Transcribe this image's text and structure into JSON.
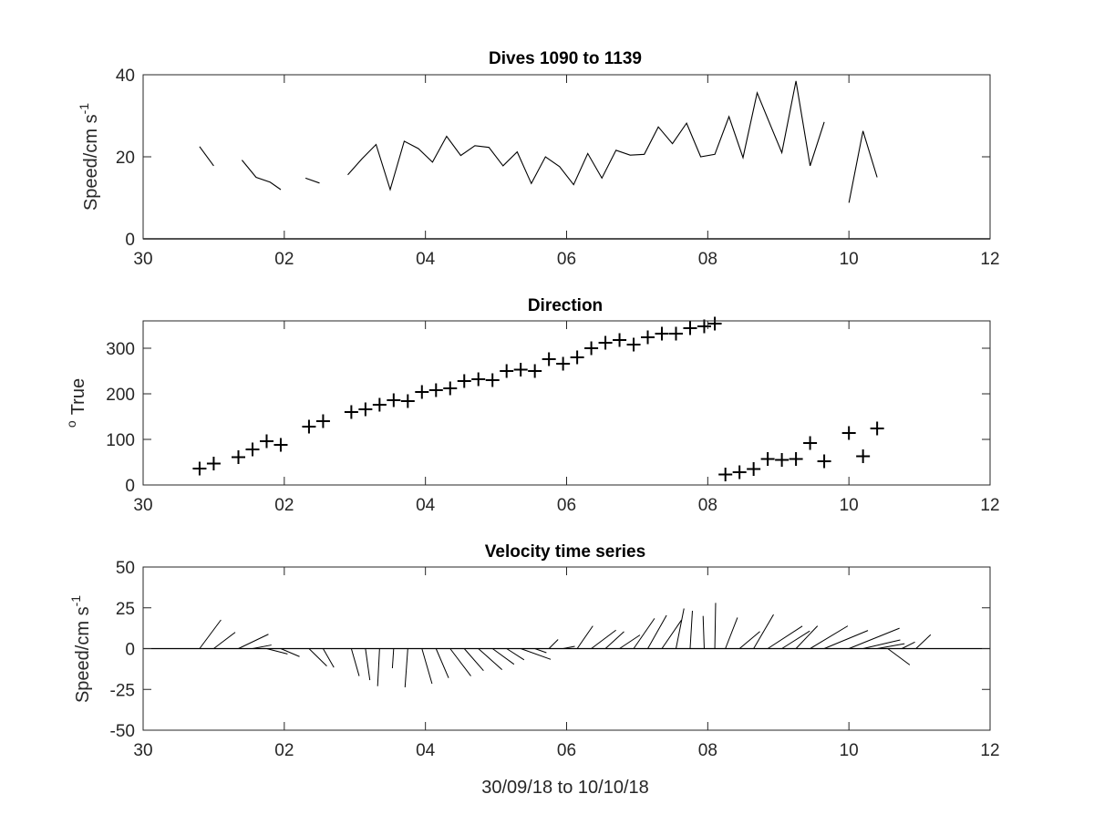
{
  "figure": {
    "x_axis_label": "30/09/18 to 10/10/18",
    "line_color": "#000000",
    "axis_color": "#262626",
    "background": "#ffffff"
  },
  "chart_data": [
    {
      "type": "line",
      "title": "Dives 1090 to 1139",
      "ylabel": "Speed/cm s",
      "ylabel_superscript": "-1",
      "x_unit": "days after 30/09/18 00:00",
      "xlim": [
        0,
        12
      ],
      "ylim": [
        0,
        40
      ],
      "x_ticks": [
        0,
        2,
        4,
        6,
        8,
        10,
        12
      ],
      "x_tick_labels": [
        "30",
        "02",
        "04",
        "06",
        "08",
        "10",
        "12"
      ],
      "y_ticks": [
        0,
        20,
        40
      ],
      "y_tick_labels": [
        "0",
        "20",
        "40"
      ],
      "segments": [
        [
          [
            0.8,
            22.5
          ],
          [
            1.0,
            17.8
          ]
        ],
        [
          [
            1.4,
            19.2
          ],
          [
            1.6,
            15.0
          ],
          [
            1.8,
            13.8
          ],
          [
            1.95,
            12.0
          ]
        ],
        [
          [
            2.3,
            14.8
          ],
          [
            2.5,
            13.6
          ]
        ],
        [
          [
            2.9,
            15.6
          ],
          [
            3.1,
            19.5
          ],
          [
            3.3,
            23.0
          ],
          [
            3.5,
            12.0
          ],
          [
            3.7,
            23.8
          ],
          [
            3.9,
            22.0
          ],
          [
            4.1,
            18.7
          ],
          [
            4.3,
            25.0
          ],
          [
            4.5,
            20.3
          ],
          [
            4.7,
            22.7
          ],
          [
            4.9,
            22.3
          ],
          [
            5.1,
            17.8
          ],
          [
            5.3,
            21.2
          ],
          [
            5.5,
            13.5
          ],
          [
            5.7,
            20.0
          ],
          [
            5.9,
            17.6
          ],
          [
            6.1,
            13.2
          ],
          [
            6.3,
            20.8
          ],
          [
            6.5,
            14.8
          ],
          [
            6.7,
            21.6
          ],
          [
            6.9,
            20.4
          ],
          [
            7.1,
            20.6
          ],
          [
            7.3,
            27.3
          ],
          [
            7.5,
            23.2
          ],
          [
            7.7,
            28.2
          ],
          [
            7.9,
            20.0
          ],
          [
            8.1,
            20.6
          ],
          [
            8.3,
            29.8
          ],
          [
            8.5,
            19.8
          ],
          [
            8.7,
            35.6
          ],
          [
            8.9,
            27.2
          ],
          [
            9.05,
            21.0
          ],
          [
            9.25,
            38.5
          ],
          [
            9.45,
            17.8
          ],
          [
            9.65,
            28.5
          ]
        ],
        [
          [
            10.0,
            8.8
          ],
          [
            10.2,
            26.3
          ],
          [
            10.4,
            15.0
          ]
        ]
      ]
    },
    {
      "type": "scatter",
      "title": "Direction",
      "ylabel": "True",
      "ylabel_superscript": "o",
      "x_unit": "days after 30/09/18 00:00",
      "xlim": [
        0,
        12
      ],
      "ylim": [
        0,
        360
      ],
      "x_ticks": [
        0,
        2,
        4,
        6,
        8,
        10,
        12
      ],
      "x_tick_labels": [
        "30",
        "02",
        "04",
        "06",
        "08",
        "10",
        "12"
      ],
      "y_ticks": [
        0,
        100,
        200,
        300
      ],
      "y_tick_labels": [
        "0",
        "100",
        "200",
        "300"
      ],
      "marker": "+",
      "points": [
        [
          0.8,
          36
        ],
        [
          1.0,
          47
        ],
        [
          1.35,
          61
        ],
        [
          1.55,
          78
        ],
        [
          1.75,
          96
        ],
        [
          1.95,
          88
        ],
        [
          2.35,
          128
        ],
        [
          2.55,
          140
        ],
        [
          2.95,
          160
        ],
        [
          3.15,
          166
        ],
        [
          3.35,
          176
        ],
        [
          3.55,
          186
        ],
        [
          3.75,
          184
        ],
        [
          3.95,
          204
        ],
        [
          4.15,
          208
        ],
        [
          4.35,
          212
        ],
        [
          4.55,
          228
        ],
        [
          4.75,
          232
        ],
        [
          4.95,
          230
        ],
        [
          5.15,
          250
        ],
        [
          5.35,
          253
        ],
        [
          5.55,
          250
        ],
        [
          5.75,
          276
        ],
        [
          5.95,
          266
        ],
        [
          6.15,
          280
        ],
        [
          6.35,
          300
        ],
        [
          6.55,
          312
        ],
        [
          6.75,
          318
        ],
        [
          6.95,
          308
        ],
        [
          7.15,
          324
        ],
        [
          7.35,
          332
        ],
        [
          7.55,
          332
        ],
        [
          7.75,
          344
        ],
        [
          7.95,
          348
        ],
        [
          8.1,
          354
        ],
        [
          8.25,
          23
        ],
        [
          8.45,
          28
        ],
        [
          8.65,
          35
        ],
        [
          8.85,
          57
        ],
        [
          9.05,
          55
        ],
        [
          9.25,
          57
        ],
        [
          9.45,
          92
        ],
        [
          9.65,
          52
        ],
        [
          10.0,
          114
        ],
        [
          10.2,
          63
        ],
        [
          10.4,
          124
        ]
      ]
    },
    {
      "type": "quiver",
      "title": "Velocity time series",
      "ylabel": "Speed/cm s",
      "ylabel_superscript": "-1",
      "x_unit": "days after 30/09/18 00:00",
      "xlim": [
        0,
        12
      ],
      "ylim": [
        -50,
        50
      ],
      "x_ticks": [
        0,
        2,
        4,
        6,
        8,
        10,
        12
      ],
      "x_tick_labels": [
        "30",
        "02",
        "04",
        "06",
        "08",
        "10",
        "12"
      ],
      "y_ticks": [
        -50,
        -25,
        0,
        25,
        50
      ],
      "y_tick_labels": [
        "-50",
        "-25",
        "0",
        "25",
        "50"
      ],
      "vectors_ue_vn": [
        [
          0.8,
          13.1,
          17.6
        ],
        [
          1.0,
          13.2,
          10.0
        ],
        [
          1.35,
          18.4,
          8.8
        ],
        [
          1.55,
          11.6,
          2.2
        ],
        [
          1.75,
          12.8,
          -3.3
        ],
        [
          1.95,
          11.5,
          -4.9
        ],
        [
          2.35,
          10.9,
          -10.7
        ],
        [
          2.55,
          6.6,
          -11.5
        ],
        [
          2.95,
          4.8,
          -16.8
        ],
        [
          3.15,
          2.7,
          -19.3
        ],
        [
          3.35,
          -1.2,
          -23.0
        ],
        [
          3.55,
          -0.8,
          -12.0
        ],
        [
          3.75,
          -1.7,
          -23.7
        ],
        [
          3.95,
          6.2,
          -21.5
        ],
        [
          4.15,
          7.7,
          -18.0
        ],
        [
          4.35,
          12.7,
          -16.8
        ],
        [
          4.55,
          11.8,
          -13.5
        ],
        [
          4.75,
          14.5,
          -12.9
        ],
        [
          4.95,
          13.2,
          -9.6
        ],
        [
          5.15,
          10.7,
          -6.9
        ],
        [
          5.35,
          18.4,
          -6.6
        ],
        [
          5.55,
          7.1,
          -2.5
        ],
        [
          5.75,
          5.6,
          5.6
        ],
        [
          5.95,
          7.2,
          1.4
        ],
        [
          6.15,
          9.6,
          13.9
        ],
        [
          6.35,
          15.1,
          11.3
        ],
        [
          6.55,
          11.4,
          10.4
        ],
        [
          6.75,
          12.5,
          8.3
        ],
        [
          6.95,
          12.8,
          18.5
        ],
        [
          7.15,
          11.5,
          20.4
        ],
        [
          7.35,
          12.0,
          17.5
        ],
        [
          7.55,
          4.9,
          24.6
        ],
        [
          7.75,
          1.4,
          23.2
        ],
        [
          7.95,
          -0.7,
          20.0
        ],
        [
          8.1,
          0.5,
          28.0
        ],
        [
          8.25,
          7.4,
          19.0
        ],
        [
          8.45,
          12.5,
          10.5
        ],
        [
          8.65,
          12.2,
          20.9
        ],
        [
          8.85,
          21.2,
          13.8
        ],
        [
          9.05,
          17.1,
          10.8
        ],
        [
          9.25,
          13.2,
          13.9
        ],
        [
          9.45,
          23.1,
          13.9
        ],
        [
          9.65,
          26.8,
          11.1
        ],
        [
          10.0,
          31.0,
          12.5
        ],
        [
          10.2,
          22.8,
          5.3
        ],
        [
          10.4,
          16.8,
          3.0
        ],
        [
          10.55,
          13.5,
          -10.0
        ],
        [
          10.75,
          8.0,
          4.0
        ],
        [
          10.95,
          9.0,
          8.5
        ]
      ]
    }
  ]
}
